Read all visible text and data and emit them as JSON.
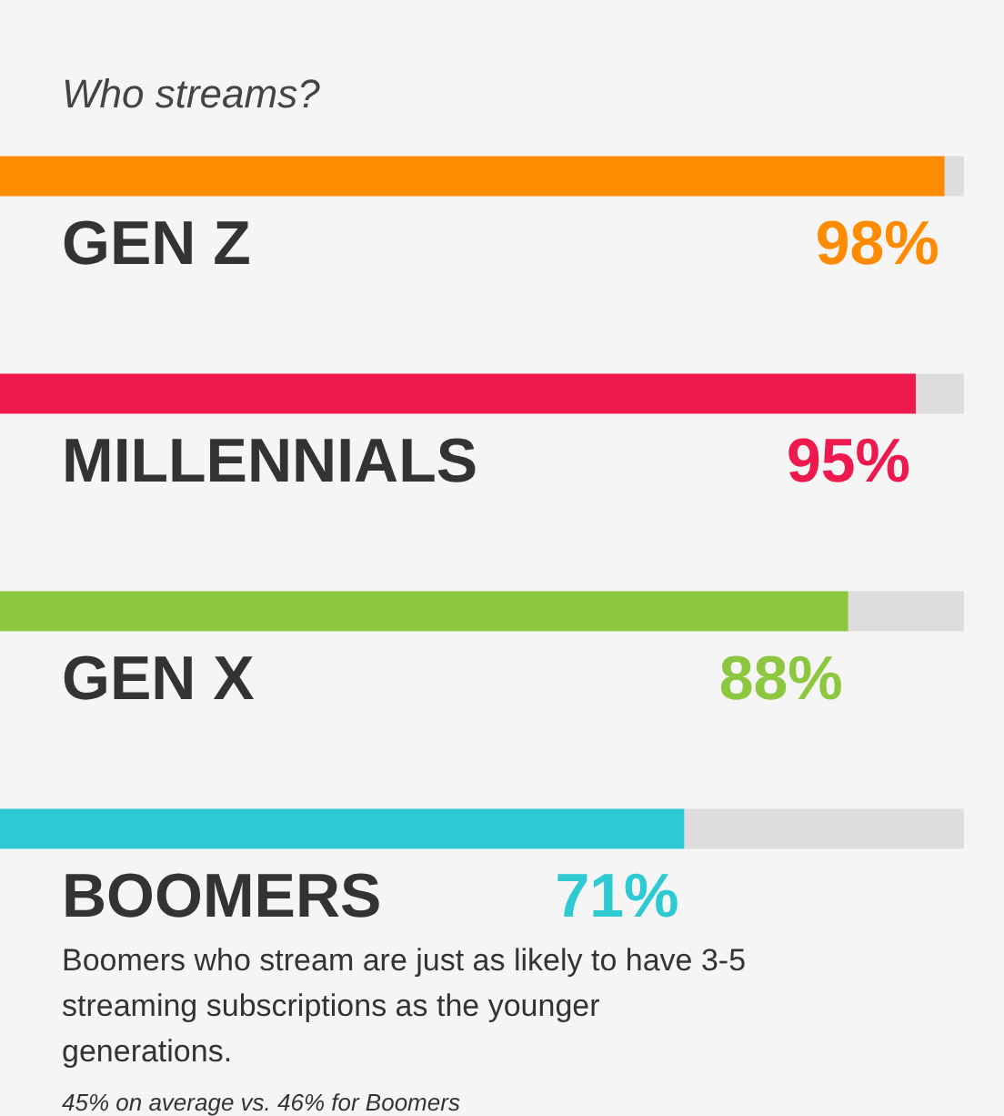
{
  "chart_data": {
    "type": "bar",
    "orientation": "horizontal",
    "stacked": true,
    "title": "Who streams?",
    "categories": [
      "GEN Z",
      "MILLENNIALS",
      "GEN X",
      "BOOMERS"
    ],
    "xlim": [
      0,
      100
    ],
    "series": [
      {
        "colors": [
          "#ff8c00",
          "#ee1a4d",
          "#8dc63f",
          "#2ecad3"
        ],
        "values": [
          98,
          95,
          88,
          71
        ],
        "value_labels": [
          "98%",
          "95%",
          "88%",
          "71%"
        ]
      },
      {
        "color": "#dddddd",
        "values": [
          2,
          5,
          12,
          29
        ]
      }
    ],
    "annotations": [
      "Boomers who stream are just as likely to have 3-5 streaming subscriptions as the younger generations.",
      "45% on average vs. 46% for Boomers"
    ]
  }
}
